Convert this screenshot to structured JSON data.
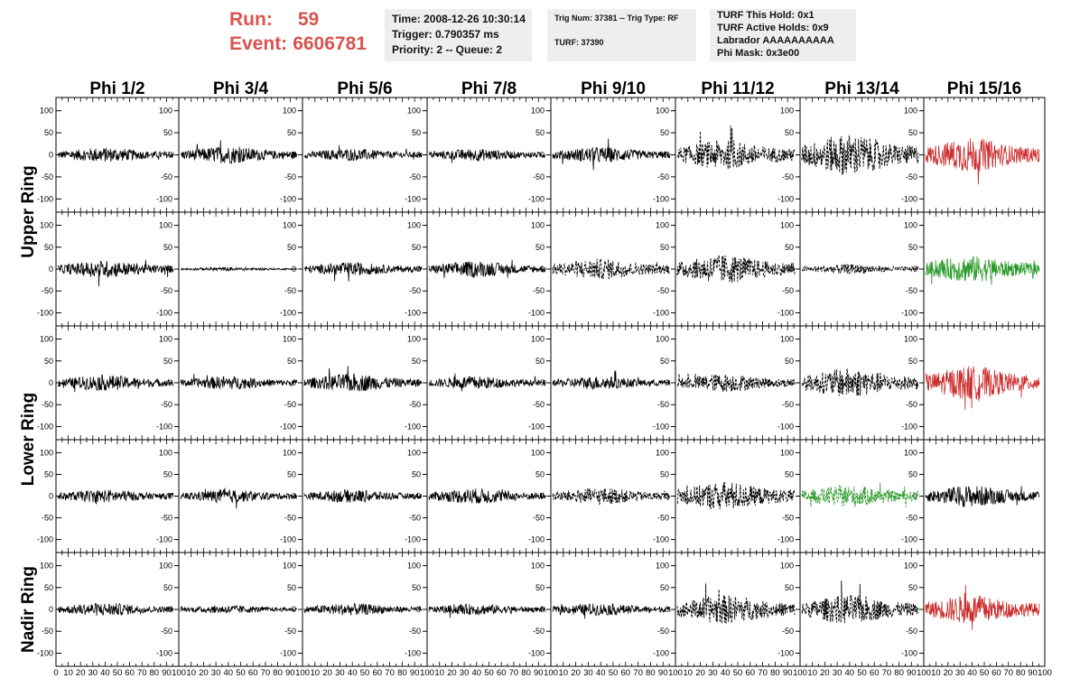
{
  "header": {
    "run_label": "Run:",
    "run_value": "59",
    "event_label": "Event:",
    "event_value": "6606781",
    "run_color": "#d9534f"
  },
  "info": {
    "time": "Time: 2008-12-26 10:30:14",
    "trigger": "Trigger: 0.790357 ms",
    "priority": "Priority: 2 -- Queue: 2",
    "trig_num": "Trig Num: 37381 -- Trig Type: RF",
    "turf": "TURF: 37390",
    "turf_hold": "TURF This Hold: 0x1",
    "turf_active": "TURF Active Holds: 0x9",
    "labrador": "Labrador AAAAAAAAAA",
    "phi_mask": "Phi Mask: 0x3e00"
  },
  "chart_data": {
    "type": "line",
    "columns": [
      "Phi 1/2",
      "Phi 3/4",
      "Phi 5/6",
      "Phi 7/8",
      "Phi 9/10",
      "Phi 11/12",
      "Phi 13/14",
      "Phi 15/16"
    ],
    "rows": [
      "Upper Ring",
      "Lower Ring",
      "Nadir Ring"
    ],
    "row_label_spans": [
      [
        0,
        1
      ],
      [
        2,
        3
      ],
      [
        4,
        4
      ]
    ],
    "ylim": [
      -130,
      130
    ],
    "yticks": [
      -100,
      -50,
      0,
      50,
      100
    ],
    "xlim": [
      0,
      100
    ],
    "xtick_labels": [
      "0",
      "10",
      "20",
      "30",
      "40",
      "50",
      "60",
      "70",
      "80",
      "90",
      "100"
    ],
    "styles": {
      "black": "#000000",
      "red": "#cc2b2b",
      "green": "#2a9a2a"
    },
    "panels": [
      [
        "black",
        "black",
        "black",
        "black",
        "black",
        "black-dash",
        "black-dash",
        "red"
      ],
      [
        "black",
        "black",
        "black",
        "black",
        "black-dash",
        "black-dash",
        "black-dash",
        "green"
      ],
      [
        "black",
        "black",
        "black",
        "black",
        "black",
        "black-dash",
        "black-dash",
        "red"
      ],
      [
        "black",
        "black",
        "black",
        "black",
        "black-dash",
        "black-dash",
        "green-dash",
        "black"
      ],
      [
        "black",
        "black",
        "black",
        "black",
        "black",
        "black-dash",
        "black-dash",
        "red"
      ]
    ],
    "amplitudes": [
      [
        12,
        14,
        10,
        10,
        13,
        24,
        34,
        28
      ],
      [
        14,
        3,
        11,
        13,
        17,
        24,
        8,
        22
      ],
      [
        13,
        11,
        15,
        11,
        11,
        15,
        24,
        28
      ],
      [
        11,
        11,
        11,
        13,
        14,
        24,
        18,
        18
      ],
      [
        11,
        7,
        10,
        9,
        10,
        24,
        24,
        24
      ]
    ],
    "right_axis_columns": [
      0,
      1,
      2,
      3,
      4,
      5,
      6
    ]
  }
}
